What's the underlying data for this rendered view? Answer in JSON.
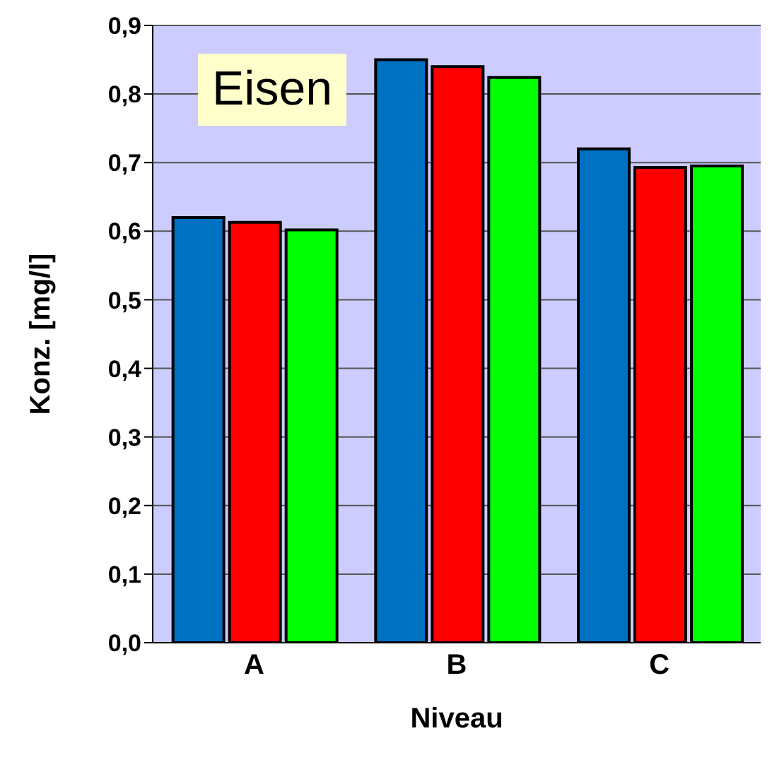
{
  "chart_data": {
    "type": "bar",
    "title": "Eisen",
    "xlabel": "Niveau",
    "ylabel": "Konz. [mg/l]",
    "categories": [
      "A",
      "B",
      "C"
    ],
    "series": [
      {
        "color": "#0070c0",
        "values": [
          0.62,
          0.85,
          0.72
        ]
      },
      {
        "color": "#ff0000",
        "values": [
          0.613,
          0.84,
          0.693
        ]
      },
      {
        "color": "#00ff00",
        "values": [
          0.602,
          0.824,
          0.695
        ]
      }
    ],
    "ylim": [
      0,
      0.9
    ],
    "yticks": [
      {
        "value": 0,
        "label": "0,0"
      },
      {
        "value": 0.1,
        "label": "0,1"
      },
      {
        "value": 0.2,
        "label": "0,2"
      },
      {
        "value": 0.3,
        "label": "0,3"
      },
      {
        "value": 0.4,
        "label": "0,4"
      },
      {
        "value": 0.5,
        "label": "0,5"
      },
      {
        "value": 0.6,
        "label": "0,6"
      },
      {
        "value": 0.7,
        "label": "0,7"
      },
      {
        "value": 0.8,
        "label": "0,8"
      },
      {
        "value": 0.9,
        "label": "0,9"
      }
    ],
    "grid": "y",
    "legend": false
  }
}
